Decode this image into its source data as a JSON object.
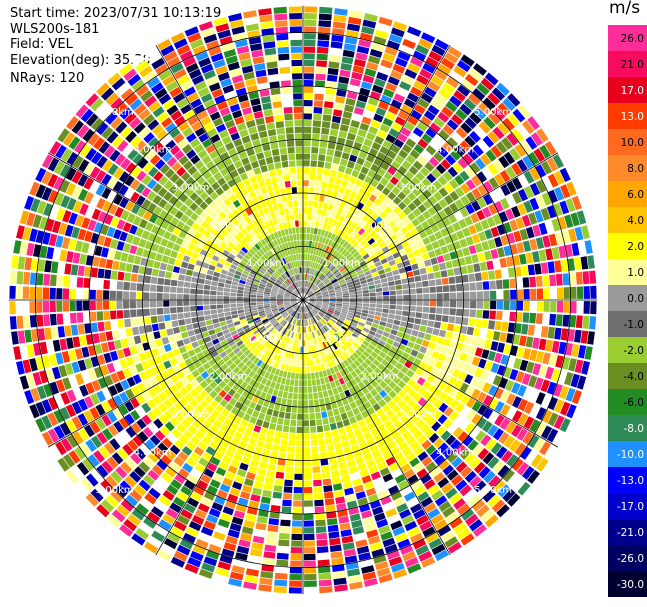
{
  "header": {
    "start_time": "Start time: 2023/07/31 10:13:19",
    "instrument": "WLS200s-181",
    "field": "Field: VEL",
    "elevation": "Elevation(deg): 35.30",
    "nrays": "NRays: 120"
  },
  "chart_data": {
    "type": "heatmap",
    "projection": "polar PPI",
    "field": "VEL",
    "unit": "m/s",
    "nrays": 120,
    "range_rings_km": [
      1.0,
      2.0,
      3.0,
      4.0,
      5.0
    ],
    "range_ring_labels": [
      "1.00km",
      "2.00km",
      "3.00km",
      "4.00km",
      "5.00km"
    ],
    "spoke_angles_deg": [
      0,
      30,
      60,
      90,
      120,
      150,
      180,
      210,
      240,
      270,
      300,
      330
    ],
    "colorbar": {
      "title": "m/s",
      "ticks": [
        "26.0",
        "21.0",
        "17.0",
        "13.0",
        "10.0",
        "8.0",
        "6.0",
        "4.0",
        "2.0",
        "1.0",
        "0.0",
        "-1.0",
        "-2.0",
        "-4.0",
        "-6.0",
        "-8.0",
        "-10.0",
        "-13.0",
        "-17.0",
        "-21.0",
        "-26.0",
        "-30.0"
      ],
      "colors": [
        "#ff2d9a",
        "#f70b5f",
        "#e8001c",
        "#ff3b00",
        "#ff6a20",
        "#ff8a2a",
        "#ffa600",
        "#ffc400",
        "#ffff00",
        "#ffff9a",
        "#9a9a9a",
        "#6e6e6e",
        "#9acd32",
        "#6b8e23",
        "#228b22",
        "#2e8b57",
        "#1e90ff",
        "#0000ff",
        "#0000cd",
        "#00008b",
        "#000060",
        "#000030"
      ]
    },
    "pattern": {
      "max_range_km": 5.5,
      "inner_positive_sector_deg": [
        -90,
        90
      ],
      "inner_negative_sector_deg": [
        90,
        270
      ],
      "valid_range_km": 3.3
    }
  }
}
